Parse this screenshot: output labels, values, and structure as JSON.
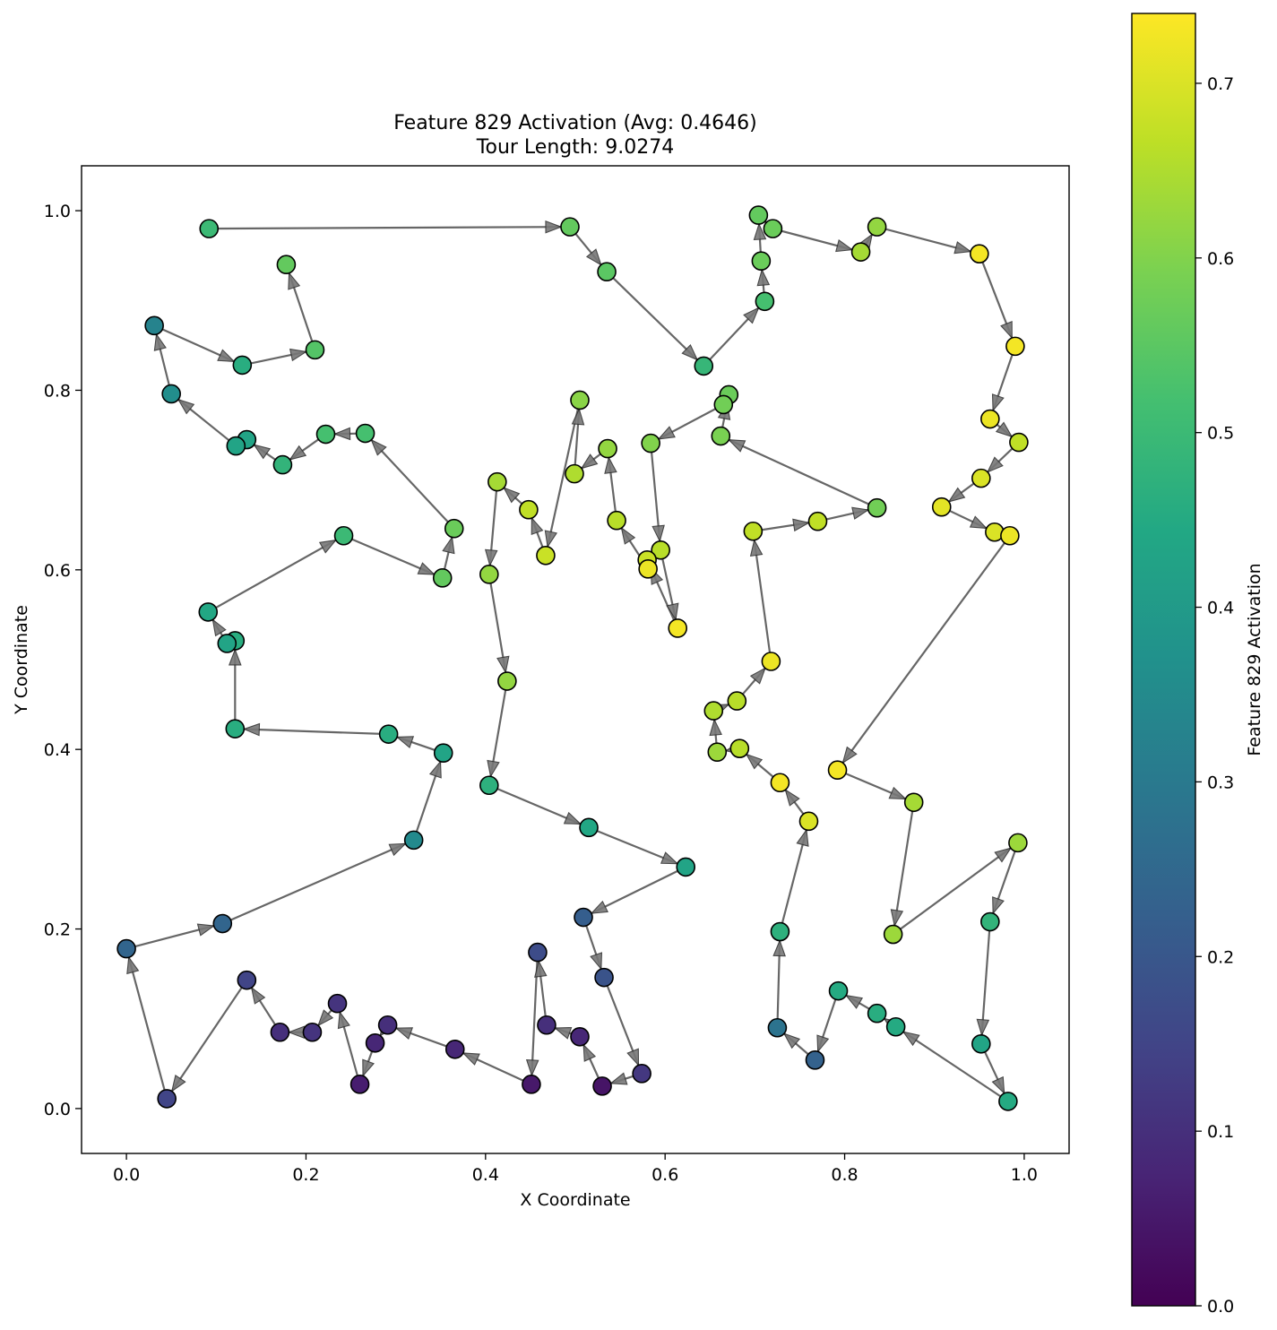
{
  "chart_data": {
    "type": "scatter",
    "title_line1": "Feature 829 Activation (Avg: 0.4646)",
    "title_line2": "Tour Length: 9.0274",
    "xlabel": "X Coordinate",
    "ylabel": "Y Coordinate",
    "xlim": [
      -0.05,
      1.05
    ],
    "ylim": [
      -0.05,
      1.05
    ],
    "xticks": [
      "0.0",
      "0.2",
      "0.4",
      "0.6",
      "0.8",
      "1.0"
    ],
    "yticks": [
      "0.0",
      "0.2",
      "0.4",
      "0.6",
      "0.8",
      "1.0"
    ],
    "xtick_values": [
      0.0,
      0.2,
      0.4,
      0.6,
      0.8,
      1.0
    ],
    "ytick_values": [
      0.0,
      0.2,
      0.4,
      0.6,
      0.8,
      1.0
    ],
    "colorbar": {
      "label": "Feature 829 Activation",
      "colormap": "viridis",
      "range": [
        0.0,
        0.74
      ],
      "ticks": [
        "0.0",
        "0.1",
        "0.2",
        "0.3",
        "0.4",
        "0.5",
        "0.6",
        "0.7"
      ],
      "tick_values": [
        0.0,
        0.1,
        0.2,
        0.3,
        0.4,
        0.5,
        0.6,
        0.7
      ]
    },
    "tour": [
      [
        0.092,
        0.98,
        0.5
      ],
      [
        0.494,
        0.982,
        0.56
      ],
      [
        0.535,
        0.932,
        0.55
      ],
      [
        0.643,
        0.827,
        0.49
      ],
      [
        0.711,
        0.899,
        0.52
      ],
      [
        0.707,
        0.944,
        0.57
      ],
      [
        0.704,
        0.995,
        0.56
      ],
      [
        0.72,
        0.98,
        0.57
      ],
      [
        0.818,
        0.954,
        0.64
      ],
      [
        0.836,
        0.982,
        0.62
      ],
      [
        0.95,
        0.952,
        0.73
      ],
      [
        0.99,
        0.849,
        0.73
      ],
      [
        0.962,
        0.768,
        0.72
      ],
      [
        0.994,
        0.742,
        0.67
      ],
      [
        0.952,
        0.702,
        0.7
      ],
      [
        0.908,
        0.67,
        0.71
      ],
      [
        0.967,
        0.642,
        0.7
      ],
      [
        0.984,
        0.638,
        0.72
      ],
      [
        0.792,
        0.377,
        0.73
      ],
      [
        0.877,
        0.341,
        0.64
      ],
      [
        0.854,
        0.194,
        0.63
      ],
      [
        0.993,
        0.296,
        0.63
      ],
      [
        0.962,
        0.208,
        0.48
      ],
      [
        0.952,
        0.072,
        0.43
      ],
      [
        0.982,
        0.008,
        0.45
      ],
      [
        0.857,
        0.091,
        0.45
      ],
      [
        0.836,
        0.106,
        0.46
      ],
      [
        0.793,
        0.131,
        0.45
      ],
      [
        0.767,
        0.054,
        0.23
      ],
      [
        0.725,
        0.09,
        0.28
      ],
      [
        0.728,
        0.197,
        0.47
      ],
      [
        0.76,
        0.32,
        0.7
      ],
      [
        0.728,
        0.363,
        0.73
      ],
      [
        0.683,
        0.401,
        0.66
      ],
      [
        0.658,
        0.397,
        0.63
      ],
      [
        0.654,
        0.443,
        0.65
      ],
      [
        0.68,
        0.454,
        0.66
      ],
      [
        0.718,
        0.498,
        0.72
      ],
      [
        0.698,
        0.643,
        0.67
      ],
      [
        0.77,
        0.654,
        0.67
      ],
      [
        0.836,
        0.669,
        0.58
      ],
      [
        0.662,
        0.749,
        0.59
      ],
      [
        0.671,
        0.795,
        0.57
      ],
      [
        0.665,
        0.784,
        0.58
      ],
      [
        0.584,
        0.741,
        0.6
      ],
      [
        0.595,
        0.622,
        0.66
      ],
      [
        0.614,
        0.535,
        0.73
      ],
      [
        0.58,
        0.611,
        0.68
      ],
      [
        0.581,
        0.601,
        0.72
      ],
      [
        0.546,
        0.655,
        0.66
      ],
      [
        0.536,
        0.735,
        0.62
      ],
      [
        0.499,
        0.707,
        0.65
      ],
      [
        0.505,
        0.789,
        0.61
      ],
      [
        0.467,
        0.616,
        0.68
      ],
      [
        0.448,
        0.667,
        0.67
      ],
      [
        0.413,
        0.698,
        0.64
      ],
      [
        0.404,
        0.595,
        0.62
      ],
      [
        0.424,
        0.476,
        0.62
      ],
      [
        0.404,
        0.36,
        0.47
      ],
      [
        0.515,
        0.313,
        0.44
      ],
      [
        0.623,
        0.269,
        0.43
      ],
      [
        0.509,
        0.213,
        0.22
      ],
      [
        0.532,
        0.146,
        0.19
      ],
      [
        0.574,
        0.039,
        0.12
      ],
      [
        0.53,
        0.025,
        0.04
      ],
      [
        0.505,
        0.08,
        0.08
      ],
      [
        0.468,
        0.093,
        0.1
      ],
      [
        0.458,
        0.174,
        0.17
      ],
      [
        0.451,
        0.027,
        0.05
      ],
      [
        0.366,
        0.066,
        0.08
      ],
      [
        0.291,
        0.093,
        0.1
      ],
      [
        0.277,
        0.073,
        0.08
      ],
      [
        0.26,
        0.027,
        0.06
      ],
      [
        0.235,
        0.117,
        0.11
      ],
      [
        0.207,
        0.085,
        0.11
      ],
      [
        0.171,
        0.085,
        0.1
      ],
      [
        0.134,
        0.143,
        0.15
      ],
      [
        0.045,
        0.011,
        0.15
      ],
      [
        0.0,
        0.178,
        0.24
      ],
      [
        0.107,
        0.206,
        0.24
      ],
      [
        0.32,
        0.299,
        0.35
      ],
      [
        0.353,
        0.396,
        0.43
      ],
      [
        0.292,
        0.417,
        0.46
      ],
      [
        0.121,
        0.423,
        0.46
      ],
      [
        0.121,
        0.521,
        0.46
      ],
      [
        0.112,
        0.518,
        0.43
      ],
      [
        0.091,
        0.553,
        0.44
      ],
      [
        0.242,
        0.638,
        0.5
      ],
      [
        0.352,
        0.591,
        0.56
      ],
      [
        0.365,
        0.646,
        0.57
      ],
      [
        0.266,
        0.752,
        0.52
      ],
      [
        0.222,
        0.751,
        0.52
      ],
      [
        0.174,
        0.717,
        0.48
      ],
      [
        0.134,
        0.745,
        0.43
      ],
      [
        0.122,
        0.738,
        0.43
      ],
      [
        0.05,
        0.796,
        0.36
      ],
      [
        0.031,
        0.872,
        0.33
      ],
      [
        0.129,
        0.828,
        0.46
      ],
      [
        0.21,
        0.845,
        0.54
      ],
      [
        0.178,
        0.94,
        0.56
      ]
    ]
  }
}
